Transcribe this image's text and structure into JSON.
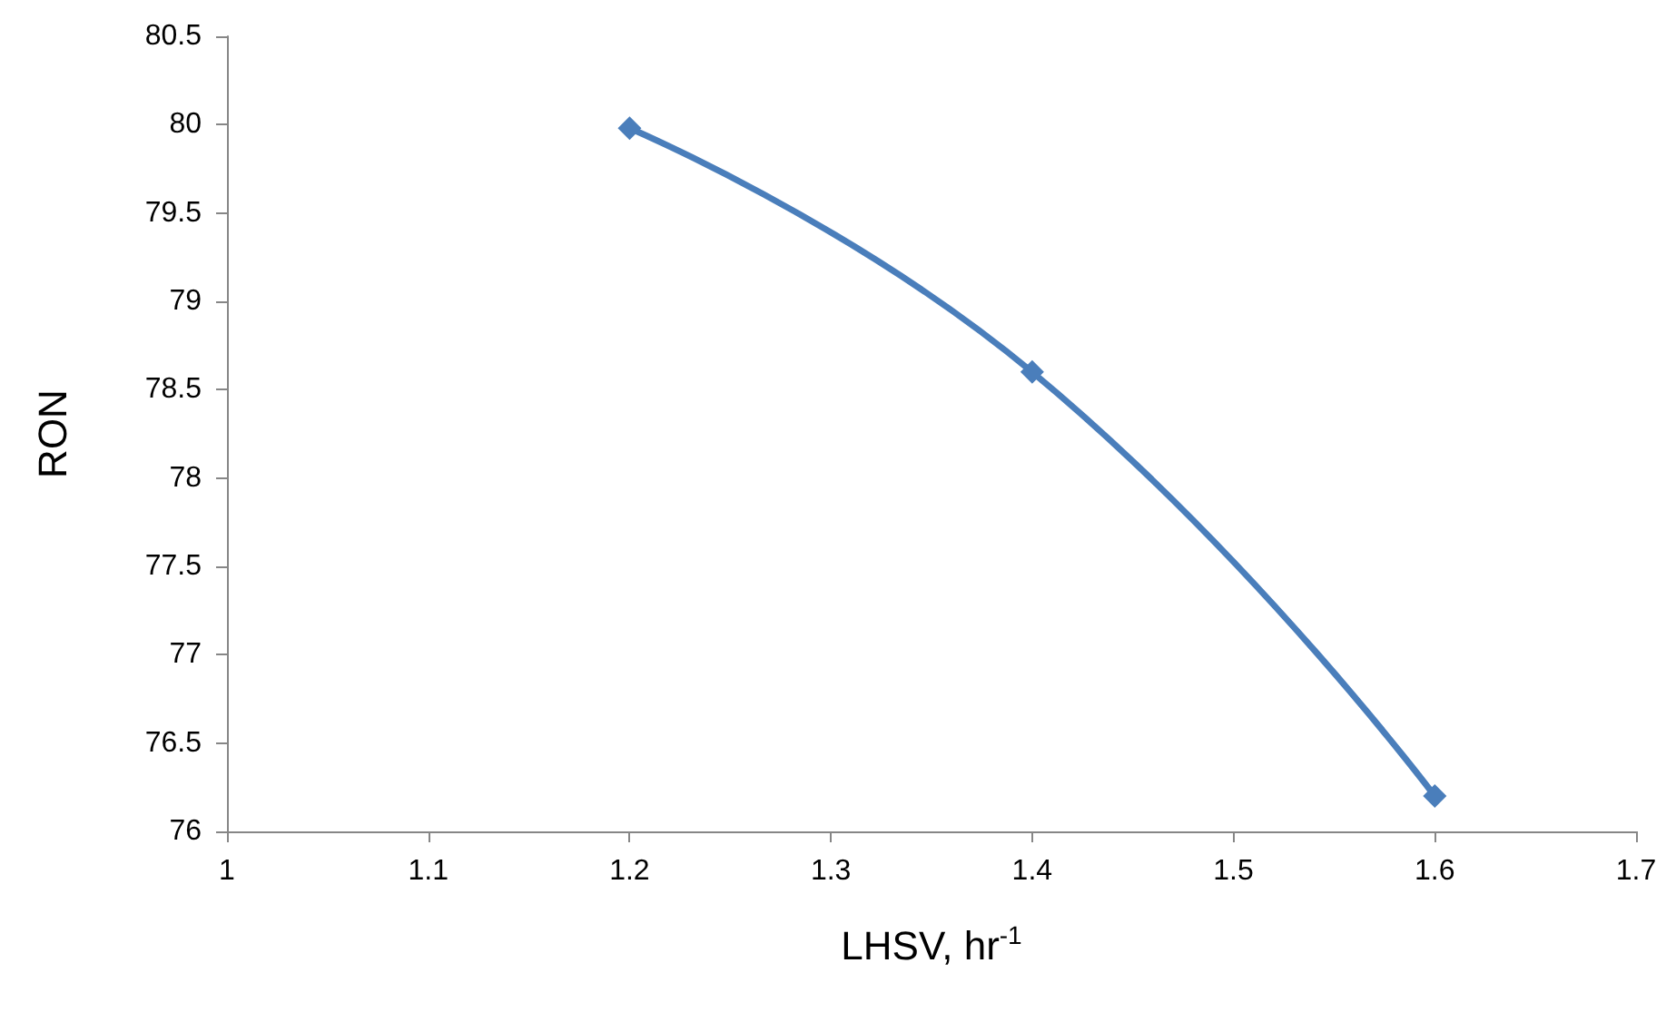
{
  "chart_data": {
    "type": "line",
    "xlabel": "LHSV, hr$^{-1}$",
    "ylabel": "RON",
    "x": [
      1.2,
      1.4,
      1.6
    ],
    "series": [
      {
        "color": "#4a7ebb",
        "values": [
          79.98,
          78.6,
          76.2
        ]
      }
    ],
    "xlim": [
      1,
      1.7
    ],
    "xticks": [
      1,
      1.1,
      1.2,
      1.3,
      1.4,
      1.5,
      1.6,
      1.7
    ],
    "ylim": [
      76,
      80.5
    ],
    "yticks": [
      76,
      76.5,
      77,
      77.5,
      78,
      78.5,
      79,
      79.5,
      80,
      80.5
    ],
    "grid": false,
    "marker": "diamond",
    "line_style": "solid"
  }
}
